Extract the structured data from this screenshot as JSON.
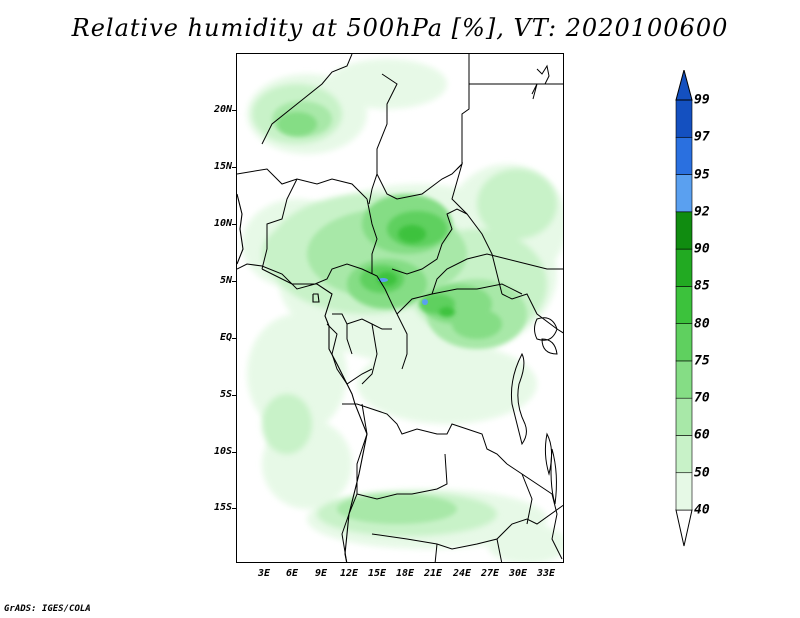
{
  "title": "Relative humidity at 500hPa [%], VT: 2020100600",
  "credit": "GrADS: IGES/COLA",
  "latitude_labels": [
    "20N",
    "15N",
    "10N",
    "5N",
    "EQ",
    "5S",
    "10S",
    "15S"
  ],
  "longitude_labels": [
    "3E",
    "6E",
    "9E",
    "12E",
    "15E",
    "18E",
    "21E",
    "24E",
    "27E",
    "30E",
    "33E"
  ],
  "colorbar": {
    "levels": [
      "40",
      "50",
      "60",
      "70",
      "75",
      "80",
      "85",
      "90",
      "92",
      "95",
      "97",
      "99"
    ],
    "colors": [
      "#ffffff",
      "#e6f9e6",
      "#c8f2c8",
      "#a8e8a8",
      "#85dd85",
      "#5fd05f",
      "#3cc23c",
      "#22aa22",
      "#108c10",
      "#5aa0f0",
      "#2a70e0",
      "#1450c0"
    ]
  },
  "humidity_palette": {
    "light": "#e6f9e6",
    "l2": "#c8f2c8",
    "l3": "#a8e8a8",
    "mid": "#85dd85",
    "m2": "#5fd05f",
    "dark": "#3cc23c",
    "d2": "#22aa22",
    "blue": "#5aa0f0"
  }
}
